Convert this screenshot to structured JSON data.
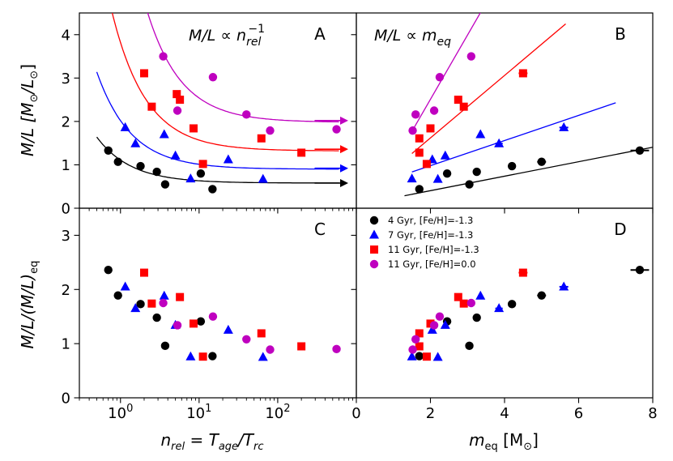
{
  "colors": {
    "4 Gyr": "#000000",
    "7 Gyr": "#0000ff",
    "11 Gyr": "#ff0000",
    "11 Gyr solar": "#bf00bf"
  },
  "chart_data": [
    {
      "panel": "A",
      "type": "scatter",
      "annotation": "M/L ∝ n_rel^-1",
      "annotation_parts": {
        "lhs": "M/L ∝ n",
        "sub": "rel",
        "sup": "−1"
      },
      "xscale": "log",
      "xlim": [
        0.3,
        1000
      ],
      "ylim": [
        0,
        4.5
      ],
      "x_ticks": [
        {
          "value": 1,
          "base": "10",
          "exp": "0"
        },
        {
          "value": 10,
          "base": "10",
          "exp": "1"
        },
        {
          "value": 100,
          "base": "10",
          "exp": "2"
        }
      ],
      "y_ticks": [
        0,
        1,
        2,
        3,
        4
      ],
      "ylabel": "M/L [M⊙/L⊙]",
      "ylabel_parts": {
        "main": "M/L [M",
        "sub1": "⊙",
        "mid": "/L",
        "sub2": "⊙",
        "end": "]"
      },
      "series": [
        {
          "name": "4 Gyr, [Fe/H]=-1.3",
          "marker": "circle",
          "color": "#000000",
          "x": [
            0.7,
            0.93,
            1.8,
            2.9,
            3.7,
            10.5,
            14.8
          ],
          "y": [
            1.33,
            1.07,
            0.97,
            0.84,
            0.55,
            0.8,
            0.44
          ],
          "fit": {
            "a": 0.58,
            "b": 0.53
          },
          "arrow_y": 0.58
        },
        {
          "name": "7 Gyr, [Fe/H]=-1.3",
          "marker": "triangle",
          "color": "#0000ff",
          "x": [
            1.15,
            1.55,
            3.6,
            5.0,
            7.8,
            23.5,
            65
          ],
          "y": [
            1.86,
            1.49,
            1.7,
            1.21,
            0.68,
            1.12,
            0.67
          ],
          "fit": {
            "a": 0.9,
            "b": 1.12
          },
          "arrow_y": 0.92
        },
        {
          "name": "11 Gyr, [Fe/H]=-1.3",
          "marker": "square",
          "color": "#ff0000",
          "x": [
            2.0,
            2.5,
            5.2,
            5.7,
            8.5,
            11.2,
            62,
            200
          ],
          "y": [
            3.11,
            2.34,
            2.63,
            2.5,
            1.84,
            1.02,
            1.61,
            1.28
          ],
          "fit": {
            "a": 1.32,
            "b": 2.5
          },
          "arrow_y": 1.36
        },
        {
          "name": "11 Gyr, [Fe/H]=0.0",
          "marker": "circle",
          "color": "#bf00bf",
          "x": [
            3.5,
            5.3,
            15.0,
            40,
            80,
            560
          ],
          "y": [
            3.5,
            2.25,
            3.02,
            2.16,
            1.79,
            1.82
          ],
          "fit": {
            "a": 1.98,
            "b": 5.6
          },
          "arrow_y": 2.02
        }
      ]
    },
    {
      "panel": "B",
      "type": "scatter",
      "annotation": "M/L ∝ m_eq",
      "annotation_parts": {
        "lhs": "M/L ∝ m",
        "sub": "eq"
      },
      "xlim": [
        0,
        8
      ],
      "ylim": [
        0,
        4.5
      ],
      "series": [
        {
          "name": "4 Gyr, [Fe/H]=-1.3",
          "marker": "circle",
          "color": "#000000",
          "x": [
            1.7,
            2.45,
            3.05,
            3.25,
            4.2,
            5.0,
            7.65
          ],
          "y": [
            0.44,
            0.8,
            0.55,
            0.84,
            0.97,
            1.07,
            1.33
          ],
          "xerr": [
            0,
            0,
            0,
            0,
            0,
            0.12,
            0.25
          ],
          "fit": {
            "slope": 0.167,
            "intercept": 0.07,
            "x_range": [
              1.3,
              8
            ]
          }
        },
        {
          "name": "7 Gyr, [Fe/H]=-1.3",
          "marker": "triangle",
          "color": "#0000ff",
          "x": [
            1.5,
            2.05,
            2.2,
            2.4,
            3.35,
            3.85,
            5.6
          ],
          "y": [
            0.68,
            1.12,
            0.67,
            1.21,
            1.7,
            1.49,
            1.86
          ],
          "xerr": [
            0,
            0,
            0,
            0,
            0,
            0.1,
            0.12
          ],
          "fit": {
            "slope": 0.29,
            "intercept": 0.4,
            "x_range": [
              1.5,
              7
            ]
          }
        },
        {
          "name": "11 Gyr, [Fe/H]=-1.3",
          "marker": "square",
          "color": "#ff0000",
          "x": [
            1.7,
            1.7,
            1.9,
            2.0,
            2.75,
            2.9,
            4.5
          ],
          "y": [
            1.28,
            1.61,
            1.02,
            1.84,
            2.5,
            2.34,
            3.11
          ],
          "xerr": [
            0,
            0,
            0,
            0,
            0,
            0,
            0.12
          ],
          "fit": {
            "slope": 0.72,
            "intercept": 0.18,
            "x_range": [
              1.5,
              5.65
            ]
          }
        },
        {
          "name": "11 Gyr, [Fe/H]=0.0",
          "marker": "circle",
          "color": "#bf00bf",
          "x": [
            1.52,
            1.6,
            2.1,
            2.25,
            3.1
          ],
          "y": [
            1.79,
            2.16,
            2.25,
            3.02,
            3.5
          ],
          "xerr": [
            0,
            0,
            0,
            0,
            0
          ],
          "fit": {
            "slope": 1.48,
            "intercept": -0.45,
            "x_range": [
              1.5,
              4.3
            ]
          }
        }
      ]
    },
    {
      "panel": "C",
      "type": "scatter",
      "xscale": "log",
      "xlim": [
        0.3,
        1000
      ],
      "ylim": [
        0,
        3.5
      ],
      "y_ticks": [
        0,
        1,
        2,
        3
      ],
      "xlabel": "n_rel = T_age/T_rc",
      "xlabel_parts": {
        "n": "n",
        "nsub": "rel",
        "eq": " = T",
        "tsub1": "age",
        "slash": "/T",
        "tsub2": "rc"
      },
      "ylabel": "M/L/(M/L)_eq",
      "ylabel_parts": {
        "main": "M/L/(M/L)",
        "sub": "eq"
      },
      "series": [
        {
          "name": "4 Gyr, [Fe/H]=-1.3",
          "marker": "circle",
          "color": "#000000",
          "x": [
            0.7,
            0.93,
            1.8,
            2.9,
            3.7,
            10.5,
            14.8
          ],
          "y": [
            2.36,
            1.89,
            1.73,
            1.48,
            0.96,
            1.41,
            0.77
          ]
        },
        {
          "name": "7 Gyr, [Fe/H]=-1.3",
          "marker": "triangle",
          "color": "#0000ff",
          "x": [
            1.15,
            1.55,
            3.6,
            5.0,
            7.8,
            23.5,
            65
          ],
          "y": [
            2.05,
            1.65,
            1.88,
            1.34,
            0.76,
            1.25,
            0.75
          ]
        },
        {
          "name": "11 Gyr, [Fe/H]=-1.3",
          "marker": "square",
          "color": "#ff0000",
          "x": [
            2.0,
            2.5,
            5.7,
            8.5,
            11.2,
            62,
            200
          ],
          "y": [
            2.31,
            1.74,
            1.86,
            1.37,
            0.76,
            1.19,
            0.95
          ]
        },
        {
          "name": "11 Gyr, [Fe/H]=0.0",
          "marker": "circle",
          "color": "#bf00bf",
          "x": [
            3.5,
            5.3,
            15.0,
            40,
            80,
            560
          ],
          "y": [
            1.75,
            1.34,
            1.5,
            1.08,
            0.89,
            0.9
          ]
        }
      ]
    },
    {
      "panel": "D",
      "type": "scatter",
      "xlim": [
        0,
        8
      ],
      "ylim": [
        0,
        3.5
      ],
      "x_ticks": [
        0,
        2,
        4,
        6,
        8
      ],
      "xlabel": "m_eq [M⊙]",
      "xlabel_parts": {
        "m": "m",
        "sub": "eq",
        "unit": " [M",
        "sun": "⊙",
        "end": "]"
      },
      "legend_position": "top-left",
      "series": [
        {
          "name": "4 Gyr, [Fe/H]=-1.3",
          "marker": "circle",
          "color": "#000000",
          "x": [
            1.7,
            2.45,
            3.05,
            3.25,
            4.2,
            5.0,
            7.65
          ],
          "y": [
            0.77,
            1.41,
            0.96,
            1.48,
            1.73,
            1.89,
            2.36
          ],
          "xerr": [
            0,
            0,
            0,
            0,
            0,
            0.12,
            0.25
          ]
        },
        {
          "name": "7 Gyr, [Fe/H]=-1.3",
          "marker": "triangle",
          "color": "#0000ff",
          "x": [
            1.5,
            2.05,
            2.2,
            2.4,
            3.35,
            3.85,
            5.6
          ],
          "y": [
            0.76,
            1.25,
            0.75,
            1.34,
            1.88,
            1.65,
            2.05
          ],
          "xerr": [
            0,
            0,
            0,
            0,
            0,
            0.1,
            0.12
          ]
        },
        {
          "name": "11 Gyr, [Fe/H]=-1.3",
          "marker": "square",
          "color": "#ff0000",
          "x": [
            1.7,
            1.7,
            1.9,
            2.0,
            2.75,
            2.9,
            4.5
          ],
          "y": [
            0.95,
            1.19,
            0.76,
            1.37,
            1.86,
            1.74,
            2.31
          ],
          "xerr": [
            0,
            0,
            0,
            0,
            0,
            0,
            0.12
          ]
        },
        {
          "name": "11 Gyr, [Fe/H]=0.0",
          "marker": "circle",
          "color": "#bf00bf",
          "x": [
            1.52,
            1.6,
            2.1,
            2.25,
            3.1
          ],
          "y": [
            0.89,
            1.08,
            1.34,
            1.5,
            1.75
          ],
          "xerr": [
            0,
            0,
            0,
            0,
            0
          ]
        }
      ]
    }
  ]
}
